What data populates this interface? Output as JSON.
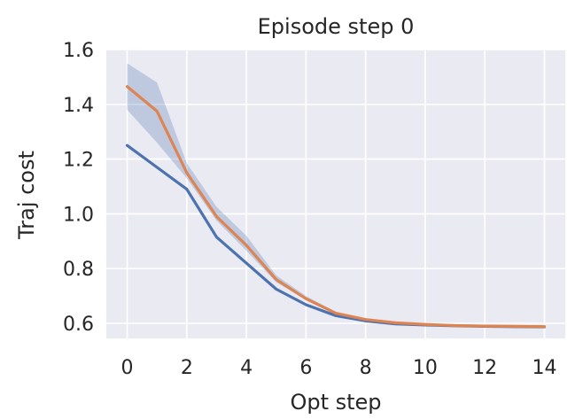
{
  "chart_data": {
    "type": "line",
    "title": "Episode step 0",
    "xlabel": "Opt step",
    "ylabel": "Traj cost",
    "xlim": [
      -0.7,
      14.7
    ],
    "ylim": [
      0.545,
      1.6
    ],
    "xticks": [
      0,
      2,
      4,
      6,
      8,
      10,
      12,
      14
    ],
    "yticks": [
      0.6,
      0.8,
      1.0,
      1.2,
      1.4,
      1.6
    ],
    "ytick_labels": [
      "0.6",
      "0.8",
      "1.0",
      "1.2",
      "1.4",
      "1.6"
    ],
    "grid": true,
    "x": [
      0,
      1,
      2,
      3,
      4,
      5,
      6,
      7,
      8,
      9,
      10,
      11,
      12,
      13,
      14
    ],
    "series": [
      {
        "color": "#4c72b0",
        "values": [
          1.25,
          1.17,
          1.09,
          0.915,
          0.82,
          0.725,
          0.668,
          0.628,
          0.609,
          0.598,
          0.594,
          0.591,
          0.589,
          0.588,
          0.587
        ]
      },
      {
        "color": "#dd8452",
        "values": [
          1.465,
          1.375,
          1.15,
          0.99,
          0.885,
          0.76,
          0.69,
          0.637,
          0.614,
          0.602,
          0.596,
          0.592,
          0.59,
          0.589,
          0.588
        ],
        "band_color": "#4c72b0",
        "band_lower": [
          1.38,
          1.26,
          1.13,
          0.975,
          0.865,
          0.75,
          0.685,
          0.634,
          0.612,
          0.6,
          0.594,
          0.591,
          0.589,
          0.588,
          0.587
        ],
        "band_upper": [
          1.55,
          1.48,
          1.185,
          1.025,
          0.92,
          0.775,
          0.7,
          0.642,
          0.617,
          0.605,
          0.599,
          0.594,
          0.592,
          0.591,
          0.59
        ]
      }
    ],
    "colors": {
      "plot_background": "#eaeaf2",
      "grid": "#ffffff",
      "text": "#262626"
    }
  }
}
